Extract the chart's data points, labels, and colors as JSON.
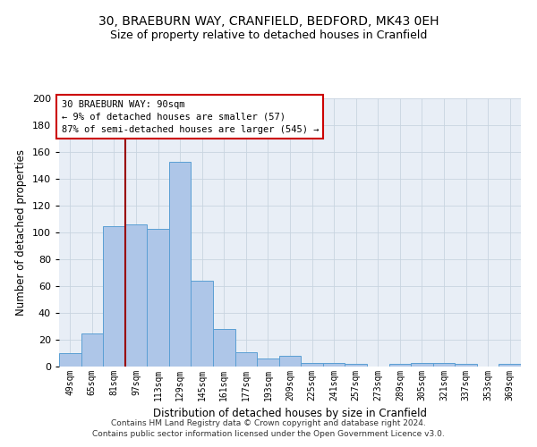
{
  "title_line1": "30, BRAEBURN WAY, CRANFIELD, BEDFORD, MK43 0EH",
  "title_line2": "Size of property relative to detached houses in Cranfield",
  "xlabel": "Distribution of detached houses by size in Cranfield",
  "ylabel": "Number of detached properties",
  "categories": [
    "49sqm",
    "65sqm",
    "81sqm",
    "97sqm",
    "113sqm",
    "129sqm",
    "145sqm",
    "161sqm",
    "177sqm",
    "193sqm",
    "209sqm",
    "225sqm",
    "241sqm",
    "257sqm",
    "273sqm",
    "289sqm",
    "305sqm",
    "321sqm",
    "337sqm",
    "353sqm",
    "369sqm"
  ],
  "values": [
    10,
    25,
    105,
    106,
    103,
    153,
    64,
    28,
    11,
    6,
    8,
    3,
    3,
    2,
    0,
    2,
    3,
    3,
    2,
    0,
    2
  ],
  "bar_color": "#aec6e8",
  "bar_edge_color": "#5a9fd4",
  "grid_color": "#c8d4e0",
  "bg_color": "#e8eef6",
  "vline_color": "#990000",
  "annotation_box_text": "30 BRAEBURN WAY: 90sqm\n← 9% of detached houses are smaller (57)\n87% of semi-detached houses are larger (545) →",
  "annotation_box_color": "#cc0000",
  "footer_line1": "Contains HM Land Registry data © Crown copyright and database right 2024.",
  "footer_line2": "Contains public sector information licensed under the Open Government Licence v3.0.",
  "ylim": [
    0,
    200
  ],
  "yticks": [
    0,
    20,
    40,
    60,
    80,
    100,
    120,
    140,
    160,
    180,
    200
  ],
  "vline_pos": 2.5
}
